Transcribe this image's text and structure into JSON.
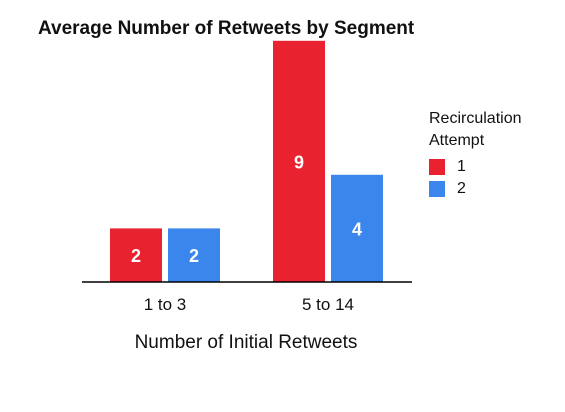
{
  "chart_data": {
    "type": "bar",
    "title": "Average Number of Retweets by Segment",
    "xlabel": "Number of Initial Retweets",
    "ylabel": "",
    "categories": [
      "1 to 3",
      "5 to 14"
    ],
    "series": [
      {
        "name": "1",
        "color": "#e8222e",
        "values": [
          2,
          9
        ]
      },
      {
        "name": "2",
        "color": "#3a86ec",
        "values": [
          2,
          4
        ]
      }
    ],
    "ylim": [
      0,
      10
    ],
    "grid": false,
    "legend": {
      "title": "Recirculation Attempt",
      "position": "right"
    }
  }
}
